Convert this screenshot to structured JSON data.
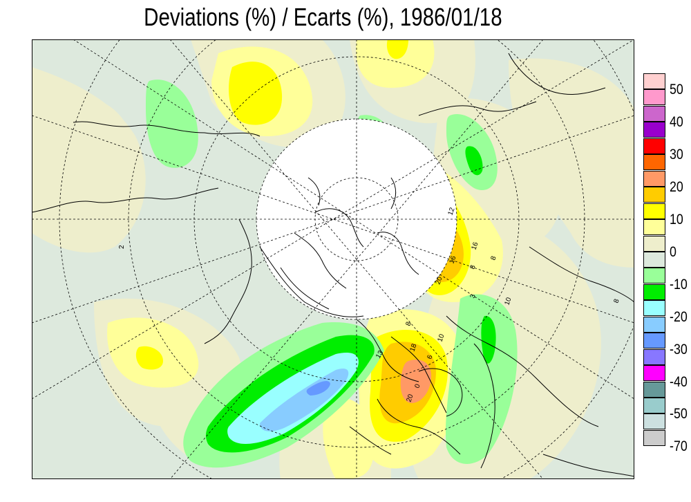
{
  "title": "Deviations (%) / Ecarts (%), 1986/01/18",
  "legend": {
    "colors": [
      "#ffd0d0",
      "#ff99cc",
      "#cc66cc",
      "#9900cc",
      "#ff0000",
      "#ff6600",
      "#ff9966",
      "#ffcc00",
      "#ffff00",
      "#ffff99",
      "#eeeecc",
      "#dde9dd",
      "#99ff99",
      "#00ee00",
      "#99ffff",
      "#88ccff",
      "#6699ff",
      "#8877ff",
      "#ff00ff",
      "#669999",
      "#99cccc",
      "#cce0e0",
      "#cccccc"
    ],
    "labels": [
      "50",
      "40",
      "30",
      "20",
      "10",
      "0",
      "-10",
      "-20",
      "-30",
      "-40",
      "-50",
      "-70"
    ]
  },
  "contour_labels": [
    "12",
    "16",
    "16",
    "8",
    "20",
    "8",
    "3",
    "10",
    "8",
    "18",
    "10",
    "13",
    "6",
    "20",
    "0",
    "8",
    "2"
  ],
  "colors": {
    "background": "#dde9dd",
    "frame": "#000000",
    "polar_cap": "#ffffff"
  }
}
